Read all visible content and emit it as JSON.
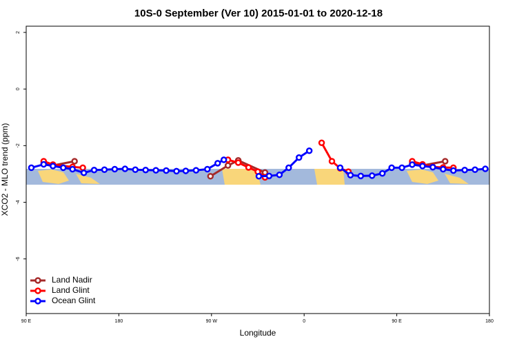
{
  "chart_data": {
    "type": "line",
    "title": "10S-0 September (Ver 10)   2015-01-01 to 2020-12-18",
    "x_label": "Longitude",
    "y_label": "XCO2 - MLO trend (ppm)",
    "xlim": [
      90,
      540
    ],
    "ylim": [
      -7.93,
      2.22
    ],
    "xticks": [
      {
        "value": 90,
        "label": "90 E"
      },
      180,
      {
        "value": 270,
        "label": "90 W"
      },
      {
        "value": 360,
        "label": "0"
      },
      {
        "value": 450,
        "label": "90 E"
      },
      {
        "value": 540,
        "label": "180"
      }
    ],
    "yticks": [
      2,
      0,
      -2,
      -4,
      -6
    ],
    "legend": "bottom-left",
    "series": [
      {
        "name": "Land Nadir",
        "color": "#a52a2a",
        "x": [
          107,
          116,
          137,
          null,
          269,
          286,
          296,
          322,
          null,
          465,
          475,
          497
        ],
        "values": [
          -2.62,
          -2.7,
          -2.55,
          null,
          -3.08,
          -2.7,
          -2.52,
          -2.95,
          null,
          -2.62,
          -2.7,
          -2.55
        ]
      },
      {
        "name": "Land Glint",
        "color": "#ff0000",
        "x": [
          107,
          116,
          135,
          145,
          null,
          286,
          296,
          306,
          315,
          322,
          null,
          377,
          387,
          395,
          403,
          null,
          465,
          475,
          485,
          495,
          505
        ],
        "values": [
          -2.55,
          -2.67,
          -2.75,
          -2.78,
          null,
          -2.5,
          -2.6,
          -2.77,
          -2.92,
          -3.12,
          null,
          -1.9,
          -2.55,
          -2.8,
          -2.92,
          null,
          -2.55,
          -2.66,
          -2.75,
          -2.77,
          -2.78
        ]
      },
      {
        "name": "Ocean Glint",
        "color": "#0000ff",
        "x": [
          95,
          107,
          116,
          126,
          135,
          146,
          156,
          166,
          176,
          186,
          196,
          206,
          216,
          226,
          236,
          245,
          255,
          266,
          276,
          282,
          null,
          316,
          326,
          336,
          345,
          355,
          365,
          null,
          395,
          405,
          415,
          426,
          436,
          445,
          455,
          465,
          475,
          485,
          495,
          505,
          516,
          526,
          536
        ],
        "values": [
          -2.78,
          -2.66,
          -2.72,
          -2.78,
          -2.83,
          -2.96,
          -2.86,
          -2.85,
          -2.83,
          -2.82,
          -2.85,
          -2.86,
          -2.87,
          -2.88,
          -2.9,
          -2.89,
          -2.87,
          -2.83,
          -2.62,
          -2.5,
          null,
          -3.08,
          -3.07,
          -3.03,
          -2.78,
          -2.42,
          -2.18,
          null,
          -2.78,
          -3.04,
          -3.07,
          -3.06,
          -2.98,
          -2.78,
          -2.78,
          -2.67,
          -2.72,
          -2.76,
          -2.83,
          -2.88,
          -2.86,
          -2.85,
          -2.82
        ]
      }
    ]
  }
}
